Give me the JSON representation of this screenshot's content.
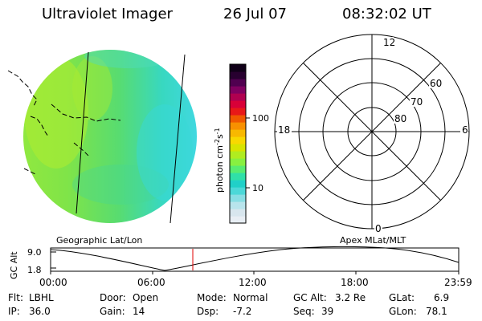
{
  "header": {
    "title": "Ultraviolet Imager",
    "date": "26 Jul 07",
    "time": "08:32:02 UT"
  },
  "colorbar": {
    "label_main": "photon cm",
    "label_exp1": "-2",
    "label_mid": "s",
    "label_exp2": "-1",
    "tick_labels": [
      "100",
      "10"
    ],
    "colors": [
      "#e8eef4",
      "#d8e6ee",
      "#b8e4ec",
      "#88dee4",
      "#4cd8d8",
      "#20d0c8",
      "#30e0a8",
      "#58ec70",
      "#88f040",
      "#b0ec20",
      "#d8e400",
      "#f8d800",
      "#f8b800",
      "#f89000",
      "#f05800",
      "#e81818",
      "#d80038",
      "#b00050",
      "#800060",
      "#500050",
      "#280030",
      "#100018"
    ]
  },
  "polar": {
    "labels_mlt": [
      "12",
      "18",
      "6",
      "0"
    ],
    "labels_lat": [
      "60",
      "70",
      "80"
    ]
  },
  "plot": {
    "left_label": "Geographic Lat/Lon",
    "right_label": "Apex MLat/MLT",
    "y_axis_label": "GC Alt",
    "y_ticks": [
      "9.0",
      "1.8"
    ],
    "x_ticks": [
      "00:00",
      "06:00",
      "12:00",
      "18:00",
      "23:59"
    ],
    "current_time_color": "#e00000"
  },
  "status": {
    "flt_label": "Flt:",
    "flt_value": "LBHL",
    "ip_label": "IP:",
    "ip_value": "36.0",
    "door_label": "Door:",
    "door_value": "Open",
    "gain_label": "Gain:",
    "gain_value": "14",
    "mode_label": "Mode:",
    "mode_value": "Normal",
    "dsp_label": "Dsp:",
    "dsp_value": "-7.2",
    "gcalt_label": "GC Alt:",
    "gcalt_value": "3.2 Re",
    "seq_label": "Seq:",
    "seq_value": "39",
    "glat_label": "GLat:",
    "glat_value": "6.9",
    "glon_label": "GLon:",
    "glon_value": "78.1"
  },
  "image_colors": {
    "base": "#6ee048",
    "left_bright": "#b8f030",
    "right_dim": "#40d8c0",
    "edge": "#40d8e0"
  }
}
